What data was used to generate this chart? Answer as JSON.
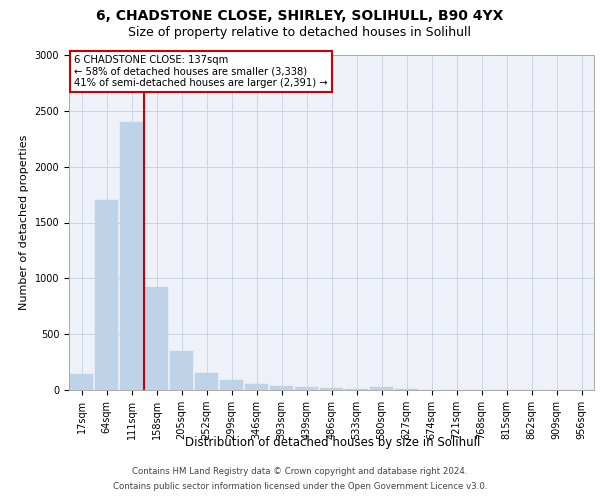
{
  "title_line1": "6, CHADSTONE CLOSE, SHIRLEY, SOLIHULL, B90 4YX",
  "title_line2": "Size of property relative to detached houses in Solihull",
  "xlabel": "Distribution of detached houses by size in Solihull",
  "ylabel": "Number of detached properties",
  "categories": [
    "17sqm",
    "64sqm",
    "111sqm",
    "158sqm",
    "205sqm",
    "252sqm",
    "299sqm",
    "346sqm",
    "393sqm",
    "439sqm",
    "486sqm",
    "533sqm",
    "580sqm",
    "627sqm",
    "674sqm",
    "721sqm",
    "768sqm",
    "815sqm",
    "862sqm",
    "909sqm",
    "956sqm"
  ],
  "values": [
    140,
    1700,
    2400,
    920,
    350,
    155,
    90,
    55,
    40,
    30,
    15,
    10,
    30,
    5,
    3,
    2,
    1,
    1,
    1,
    0,
    0
  ],
  "bar_color": "#bed3e8",
  "bar_edgecolor": "#bed3e8",
  "vline_color": "#cc0000",
  "vline_xindex": 2.5,
  "annotation_text": "6 CHADSTONE CLOSE: 137sqm\n← 58% of detached houses are smaller (3,338)\n41% of semi-detached houses are larger (2,391) →",
  "annotation_box_edgecolor": "#cc0000",
  "annotation_box_facecolor": "#ffffff",
  "ylim": [
    0,
    3000
  ],
  "yticks": [
    0,
    500,
    1000,
    1500,
    2000,
    2500,
    3000
  ],
  "grid_color": "#c8d4e4",
  "background_color": "#eef2f8",
  "footer_line1": "Contains HM Land Registry data © Crown copyright and database right 2024.",
  "footer_line2": "Contains public sector information licensed under the Open Government Licence v3.0.",
  "title_fontsize": 10,
  "subtitle_fontsize": 9,
  "tick_fontsize": 7,
  "xlabel_fontsize": 8.5,
  "ylabel_fontsize": 8
}
